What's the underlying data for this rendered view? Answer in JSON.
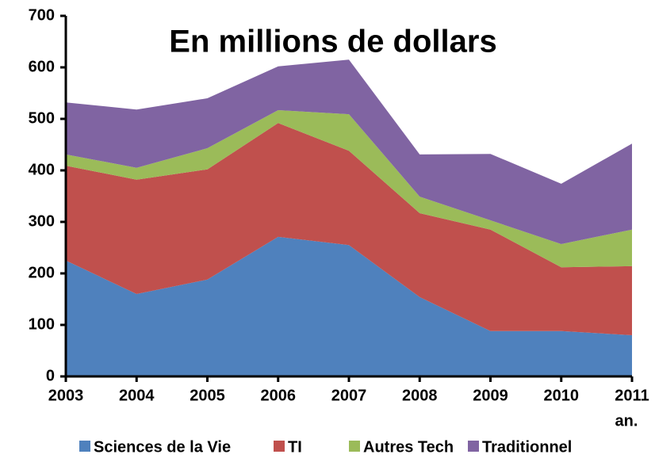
{
  "chart_data": {
    "type": "stacked_area",
    "title": "En millions de dollars",
    "x_label": "an.",
    "categories": [
      "2003",
      "2004",
      "2005",
      "2006",
      "2007",
      "2008",
      "2009",
      "2010",
      "2011"
    ],
    "series": [
      {
        "name": "Sciences de la Vie",
        "color": "#4f81bd",
        "values": [
          225,
          160,
          188,
          271,
          255,
          154,
          88,
          88,
          80
        ]
      },
      {
        "name": "TI",
        "color": "#c0504d",
        "values": [
          184,
          222,
          214,
          221,
          183,
          163,
          197,
          124,
          134
        ]
      },
      {
        "name": "Autres Tech",
        "color": "#9bbb59",
        "values": [
          22,
          23,
          41,
          25,
          71,
          32,
          18,
          45,
          71
        ]
      },
      {
        "name": "Traditionnel",
        "color": "#8064a2",
        "values": [
          101,
          113,
          97,
          85,
          106,
          82,
          129,
          117,
          167
        ]
      }
    ],
    "ylim": [
      0,
      700
    ],
    "yticks": [
      0,
      100,
      200,
      300,
      400,
      500,
      600,
      700
    ],
    "grid": false
  }
}
